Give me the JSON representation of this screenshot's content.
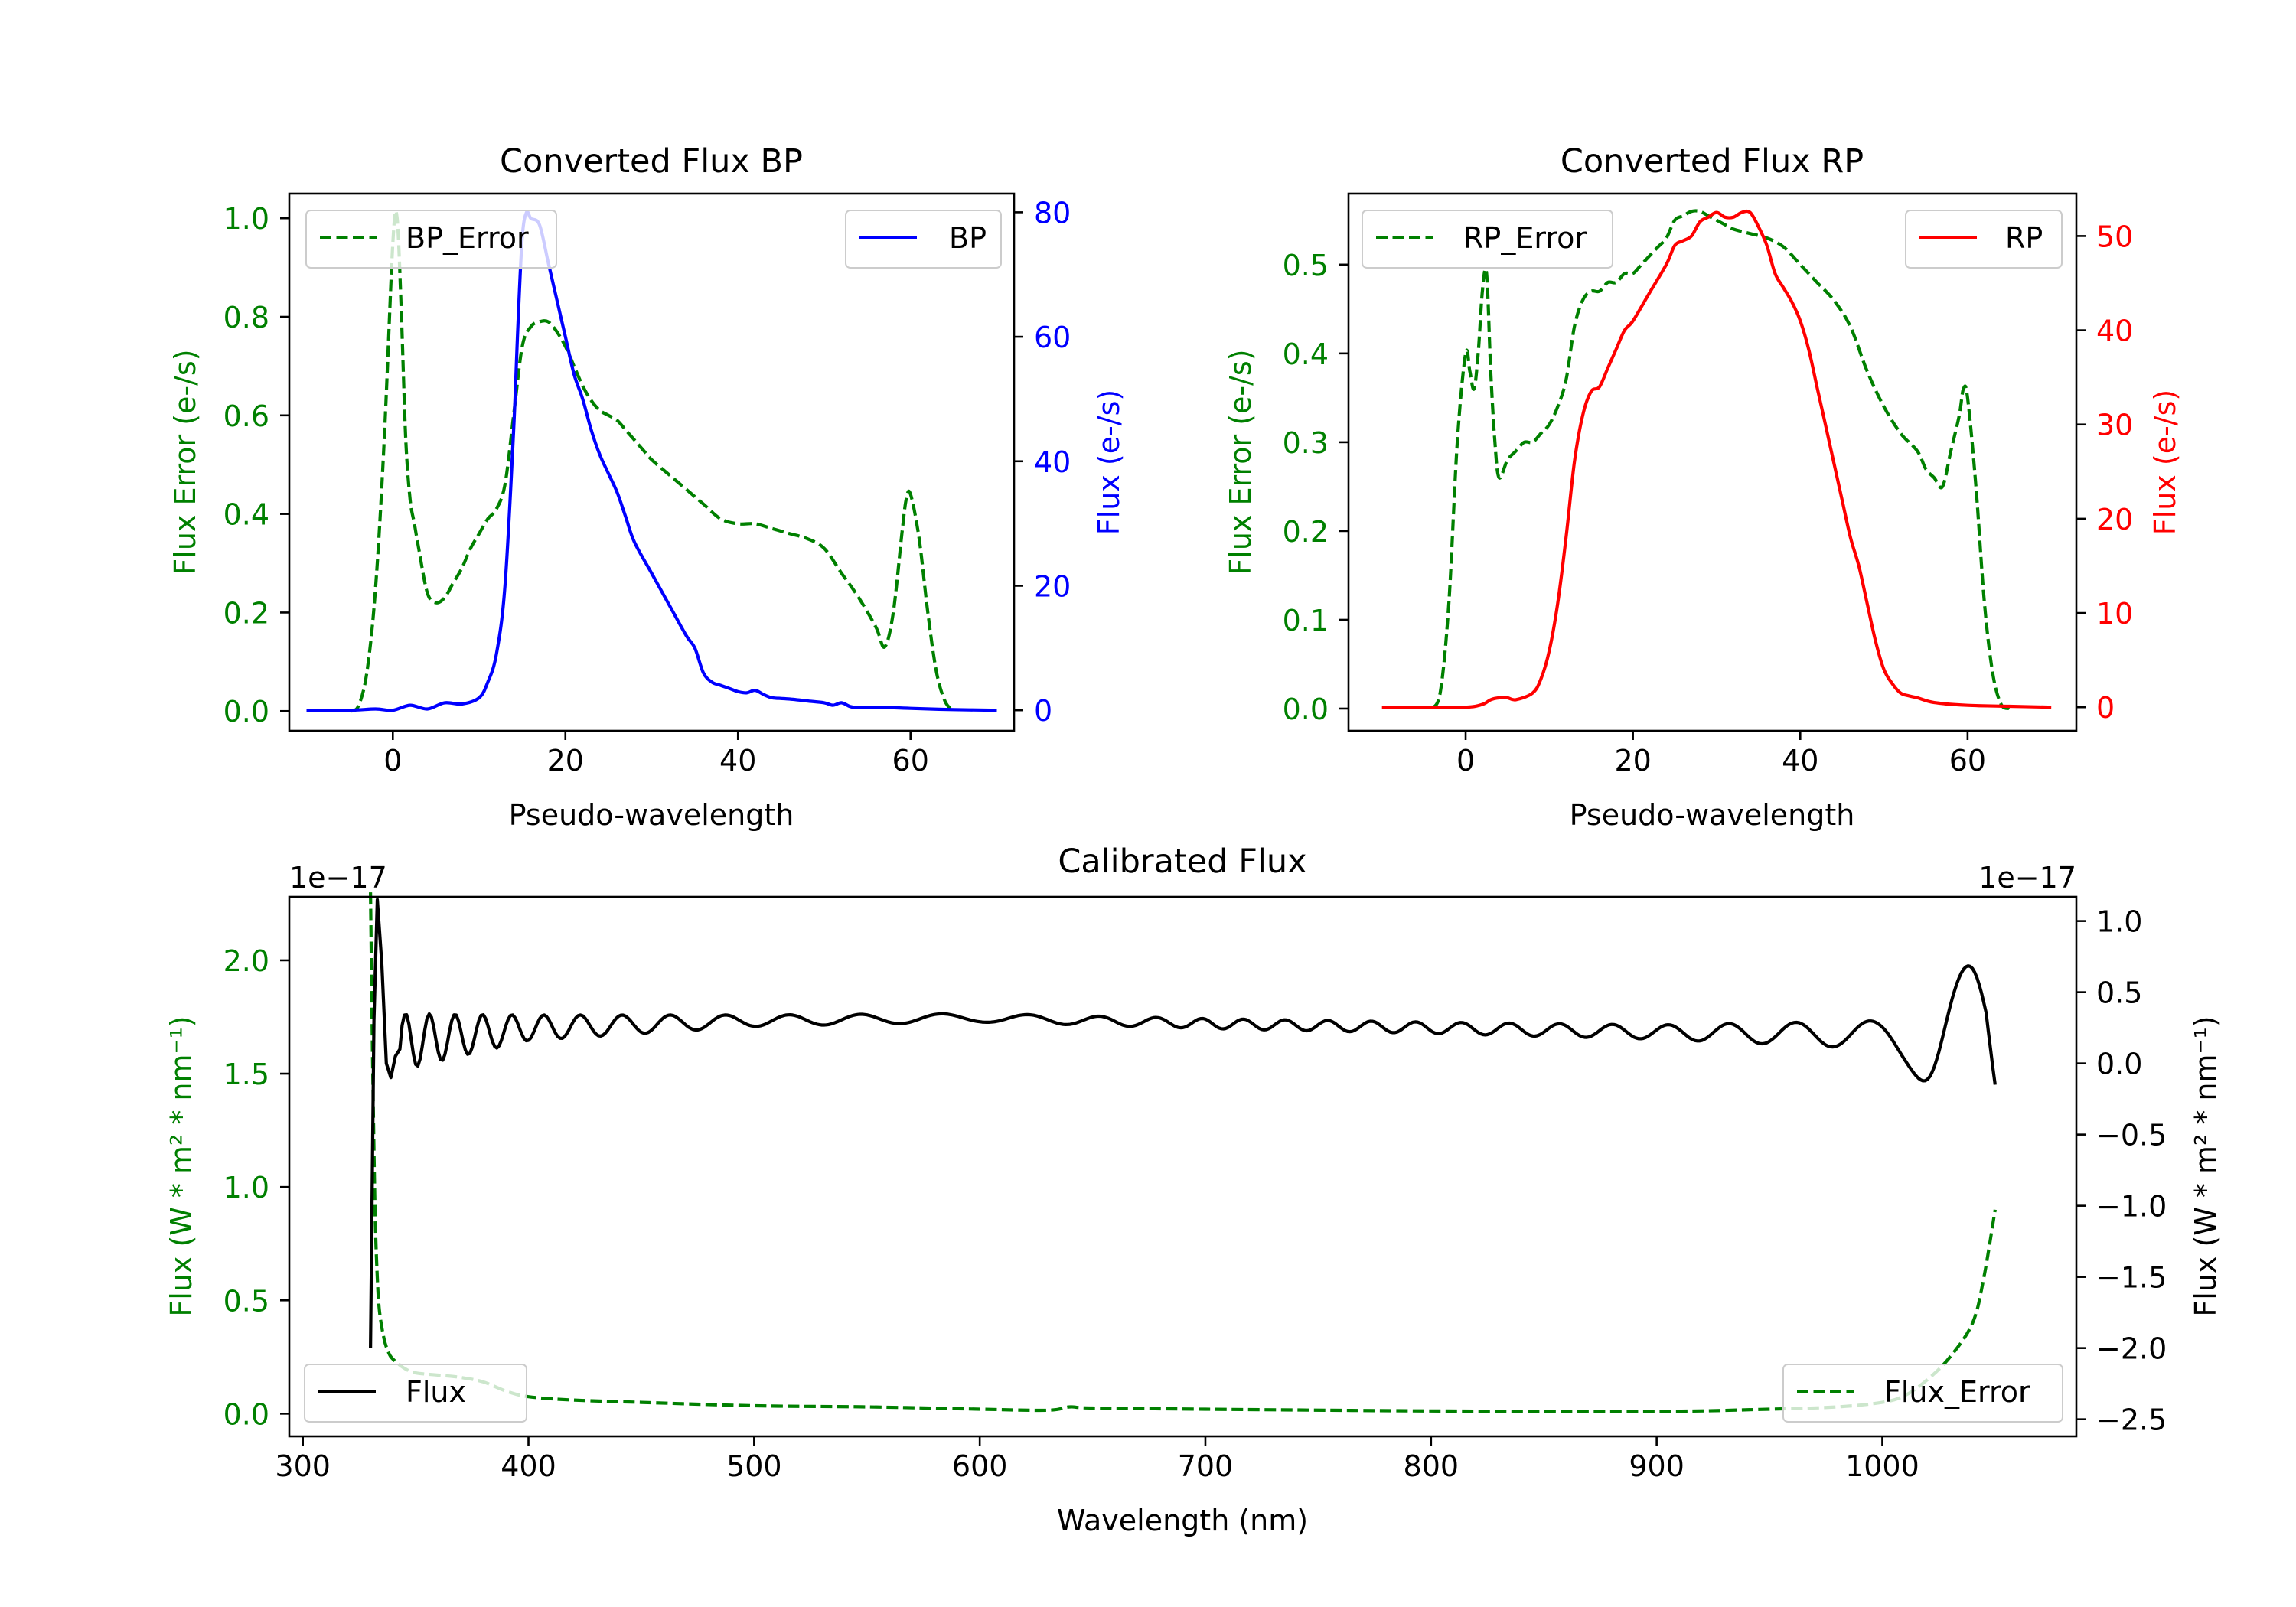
{
  "figure": {
    "background": "#ffffff"
  },
  "colors": {
    "green": "#008000",
    "blue": "#0000ff",
    "red": "#ff0000",
    "black": "#000000",
    "legend_edge": "#cccccc"
  },
  "chart_data": [
    {
      "id": "bp",
      "type": "line",
      "title": "Converted Flux BP",
      "xlabel": "Pseudo-wavelength",
      "ylabel_left": "Flux Error (e-/s)",
      "ylabel_right": "Flux (e-/s)",
      "xlim": [
        -12,
        72
      ],
      "ylim_left": [
        -0.04,
        1.05
      ],
      "ylim_right": [
        -3.3,
        83
      ],
      "xticks": [
        0,
        20,
        40,
        60
      ],
      "xtick_labels": [
        "0",
        "20",
        "40",
        "60"
      ],
      "yticks_left": [
        0.0,
        0.2,
        0.4,
        0.6,
        0.8,
        1.0
      ],
      "ytick_labels_left": [
        "0.0",
        "0.2",
        "0.4",
        "0.6",
        "0.8",
        "1.0"
      ],
      "yticks_right": [
        0,
        20,
        40,
        60,
        80
      ],
      "ytick_labels_right": [
        "0",
        "20",
        "40",
        "60",
        "80"
      ],
      "left_axis_color": "#008000",
      "right_axis_color": "#0000ff",
      "legend_left": {
        "label": "BP_Error",
        "position": "upper-left"
      },
      "legend_right": {
        "label": "BP",
        "position": "upper-right"
      },
      "series": [
        {
          "name": "BP_Error",
          "axis": "left",
          "color": "#008000",
          "style": "dashed",
          "x": [
            -5,
            -4,
            -3,
            -2,
            -1,
            0,
            0.5,
            1,
            1.5,
            2,
            2.5,
            3,
            4,
            5,
            6,
            7,
            8,
            9,
            10,
            11,
            12,
            13,
            14,
            15,
            16,
            17,
            18,
            19,
            20,
            21,
            22,
            23,
            24,
            25,
            26,
            27,
            28,
            29,
            30,
            32,
            34,
            36,
            38,
            40,
            42,
            44,
            46,
            48,
            50,
            52,
            54,
            56,
            57,
            58,
            59,
            59.5,
            60,
            61,
            62,
            63,
            64,
            65
          ],
          "y": [
            0.0,
            0.01,
            0.08,
            0.25,
            0.55,
            0.95,
            1.0,
            0.8,
            0.55,
            0.43,
            0.38,
            0.33,
            0.24,
            0.22,
            0.23,
            0.26,
            0.29,
            0.33,
            0.36,
            0.39,
            0.41,
            0.46,
            0.6,
            0.74,
            0.78,
            0.79,
            0.79,
            0.77,
            0.74,
            0.7,
            0.66,
            0.63,
            0.61,
            0.6,
            0.59,
            0.57,
            0.55,
            0.53,
            0.51,
            0.48,
            0.45,
            0.42,
            0.39,
            0.38,
            0.38,
            0.37,
            0.36,
            0.35,
            0.33,
            0.28,
            0.23,
            0.17,
            0.13,
            0.2,
            0.36,
            0.43,
            0.44,
            0.35,
            0.2,
            0.08,
            0.02,
            0.0
          ]
        },
        {
          "name": "BP",
          "axis": "right",
          "color": "#0000ff",
          "style": "solid",
          "x": [
            -10,
            -5,
            -2,
            0,
            2,
            4,
            6,
            8,
            10,
            11,
            12,
            13,
            14,
            14.5,
            15,
            15.5,
            16,
            17,
            18,
            19,
            20,
            21,
            22,
            23,
            24,
            25,
            26,
            27,
            28,
            30,
            32,
            34,
            35,
            36,
            37,
            38,
            39,
            40,
            41,
            42,
            43,
            44,
            46,
            48,
            50,
            51,
            52,
            53,
            54,
            56,
            60,
            65,
            70
          ],
          "y": [
            0,
            0,
            0.2,
            0,
            0.8,
            0.2,
            1.2,
            1.0,
            2.0,
            4.5,
            9,
            20,
            45,
            62,
            76,
            80,
            79,
            78,
            72,
            66,
            60,
            54,
            50,
            45,
            41,
            38,
            35,
            31,
            27,
            22,
            17,
            12,
            10,
            6,
            4.5,
            4,
            3.5,
            3,
            2.8,
            3.2,
            2.5,
            2,
            1.8,
            1.5,
            1.2,
            0.8,
            1.2,
            0.6,
            0.4,
            0.5,
            0.3,
            0.1,
            0
          ]
        }
      ]
    },
    {
      "id": "rp",
      "type": "line",
      "title": "Converted Flux RP",
      "xlabel": "Pseudo-wavelength",
      "ylabel_left": "Flux Error (e-/s)",
      "ylabel_right": "Flux (e-/s)",
      "xlim": [
        -14,
        73
      ],
      "ylim_left": [
        -0.025,
        0.58
      ],
      "ylim_right": [
        -2.5,
        54.5
      ],
      "xticks": [
        0,
        20,
        40,
        60
      ],
      "xtick_labels": [
        "0",
        "20",
        "40",
        "60"
      ],
      "yticks_left": [
        0.0,
        0.1,
        0.2,
        0.3,
        0.4,
        0.5
      ],
      "ytick_labels_left": [
        "0.0",
        "0.1",
        "0.2",
        "0.3",
        "0.4",
        "0.5"
      ],
      "yticks_right": [
        0,
        10,
        20,
        30,
        40,
        50
      ],
      "ytick_labels_right": [
        "0",
        "10",
        "20",
        "30",
        "40",
        "50"
      ],
      "left_axis_color": "#008000",
      "right_axis_color": "#ff0000",
      "legend_left": {
        "label": "RP_Error",
        "position": "upper-left"
      },
      "legend_right": {
        "label": "RP",
        "position": "upper-right"
      },
      "series": [
        {
          "name": "RP_Error",
          "axis": "left",
          "color": "#008000",
          "style": "dashed",
          "x": [
            -4,
            -3,
            -2,
            -1,
            0,
            0.5,
            1,
            1.5,
            2,
            2.5,
            3,
            3.5,
            4,
            5,
            6,
            7,
            8,
            9,
            10,
            11,
            12,
            13,
            14,
            15,
            16,
            17,
            18,
            19,
            20,
            21,
            22,
            23,
            24,
            25,
            26,
            27,
            28,
            29,
            30,
            31,
            32,
            34,
            36,
            38,
            40,
            42,
            44,
            46,
            48,
            50,
            52,
            54,
            55,
            56,
            57,
            58,
            59,
            59.5,
            60,
            61,
            62,
            63,
            64,
            65
          ],
          "y": [
            0.0,
            0.02,
            0.12,
            0.3,
            0.4,
            0.38,
            0.36,
            0.4,
            0.47,
            0.49,
            0.38,
            0.3,
            0.26,
            0.28,
            0.29,
            0.3,
            0.3,
            0.31,
            0.32,
            0.34,
            0.37,
            0.43,
            0.46,
            0.47,
            0.47,
            0.48,
            0.48,
            0.49,
            0.49,
            0.5,
            0.51,
            0.52,
            0.53,
            0.55,
            0.555,
            0.56,
            0.56,
            0.555,
            0.55,
            0.545,
            0.54,
            0.535,
            0.53,
            0.52,
            0.5,
            0.48,
            0.46,
            0.43,
            0.38,
            0.34,
            0.31,
            0.29,
            0.27,
            0.26,
            0.25,
            0.29,
            0.33,
            0.36,
            0.35,
            0.25,
            0.12,
            0.04,
            0.005,
            0.0
          ]
        },
        {
          "name": "RP",
          "axis": "right",
          "color": "#ff0000",
          "style": "solid",
          "x": [
            -10,
            -5,
            0,
            2,
            3,
            4,
            5,
            6,
            8,
            9,
            10,
            11,
            12,
            13,
            14,
            15,
            16,
            17,
            18,
            19,
            20,
            22,
            24,
            25,
            26,
            27,
            28,
            29,
            30,
            31,
            32,
            33,
            34,
            35,
            36,
            37,
            38,
            39,
            40,
            41,
            42,
            43,
            44,
            45,
            46,
            47,
            48,
            49,
            50,
            51,
            52,
            53,
            54,
            56,
            60,
            65,
            70
          ],
          "y": [
            0,
            0,
            0,
            0.3,
            0.8,
            1.0,
            1.0,
            0.8,
            1.5,
            3,
            6,
            11,
            18,
            26,
            31,
            33.5,
            34,
            36,
            38,
            40,
            41,
            44,
            47,
            49,
            49.5,
            50,
            51.5,
            52,
            52.5,
            52,
            52,
            52.5,
            52.5,
            51,
            49,
            46,
            44.5,
            43,
            41,
            38,
            34,
            30,
            26,
            22,
            18,
            15,
            11,
            7,
            4,
            2.5,
            1.5,
            1.2,
            1.0,
            0.5,
            0.2,
            0.1,
            0
          ]
        }
      ]
    },
    {
      "id": "cal",
      "type": "line",
      "title": "Calibrated Flux",
      "xlabel": "Wavelength (nm)",
      "ylabel_left": "Flux (W * m² * nm⁻¹)",
      "ylabel_right": "Flux (W * m² * nm⁻¹)",
      "offset_left": "1e−17",
      "offset_right": "1e−17",
      "xlim": [
        294,
        1086
      ],
      "ylim_left": [
        -0.1,
        2.28
      ],
      "ylim_right": [
        -2.62,
        1.17
      ],
      "xticks": [
        300,
        400,
        500,
        600,
        700,
        800,
        900,
        1000
      ],
      "xtick_labels": [
        "300",
        "400",
        "500",
        "600",
        "700",
        "800",
        "900",
        "1000"
      ],
      "yticks_left": [
        0.0,
        0.5,
        1.0,
        1.5,
        2.0
      ],
      "ytick_labels_left": [
        "0.0",
        "0.5",
        "1.0",
        "1.5",
        "2.0"
      ],
      "yticks_right": [
        -2.5,
        -2.0,
        -1.5,
        -1.0,
        -0.5,
        0.0,
        0.5,
        1.0
      ],
      "ytick_labels_right": [
        "−2.5",
        "−2.0",
        "−1.5",
        "−1.0",
        "−0.5",
        "0.0",
        "0.5",
        "1.0"
      ],
      "left_axis_color": "#008000",
      "right_axis_color": "#000000",
      "legend_left": {
        "label": "Flux",
        "position": "lower-left"
      },
      "legend_right": {
        "label": "Flux_Error",
        "position": "lower-right"
      },
      "series": [
        {
          "name": "Flux_Error",
          "axis": "left",
          "color": "#008000",
          "style": "dashed",
          "x": [
            330,
            331,
            332,
            333,
            334,
            336,
            338,
            340,
            345,
            350,
            360,
            370,
            380,
            390,
            400,
            420,
            450,
            500,
            550,
            600,
            630,
            640,
            650,
            700,
            800,
            900,
            950,
            980,
            1000,
            1010,
            1020,
            1030,
            1040,
            1045,
            1050
          ],
          "y": [
            2.3,
            1.5,
            0.9,
            0.6,
            0.45,
            0.33,
            0.27,
            0.24,
            0.2,
            0.18,
            0.17,
            0.16,
            0.14,
            0.1,
            0.075,
            0.06,
            0.05,
            0.035,
            0.03,
            0.02,
            0.015,
            0.03,
            0.025,
            0.02,
            0.012,
            0.01,
            0.02,
            0.03,
            0.05,
            0.08,
            0.15,
            0.25,
            0.4,
            0.6,
            0.9
          ]
        }
      ],
      "flux_curve": {
        "name": "Flux",
        "axis": "right",
        "color": "#000000",
        "style": "solid",
        "spike_x": [
          330,
          331.5,
          333,
          335,
          337,
          339,
          341,
          343
        ],
        "spike_y": [
          -2.0,
          0.3,
          1.15,
          0.7,
          0.0,
          -0.1,
          0.05,
          0.1
        ],
        "start": 343,
        "end": 1050,
        "step": 1,
        "baseline_x": [
          343,
          400,
          500,
          600,
          700,
          800,
          900,
          1000,
          1050
        ],
        "baseline_y": [
          0.15,
          0.25,
          0.3,
          0.32,
          0.28,
          0.25,
          0.22,
          0.2,
          0.1
        ],
        "osc_amp_x": [
          343,
          400,
          500,
          600,
          700,
          800,
          900,
          1000,
          1050
        ],
        "osc_amp_y": [
          0.2,
          0.09,
          0.04,
          0.03,
          0.035,
          0.04,
          0.05,
          0.1,
          0.3
        ],
        "osc_period_x": [
          343,
          400,
          500,
          600,
          700,
          800,
          900,
          1000,
          1050
        ],
        "osc_period_y": [
          10,
          14,
          28,
          40,
          18,
          20,
          25,
          35,
          40
        ],
        "bump_center": 1042,
        "bump_height": 0.55,
        "bump_width": 10,
        "dip_center": 1022,
        "dip_height": -0.25,
        "dip_width": 8
      }
    }
  ]
}
